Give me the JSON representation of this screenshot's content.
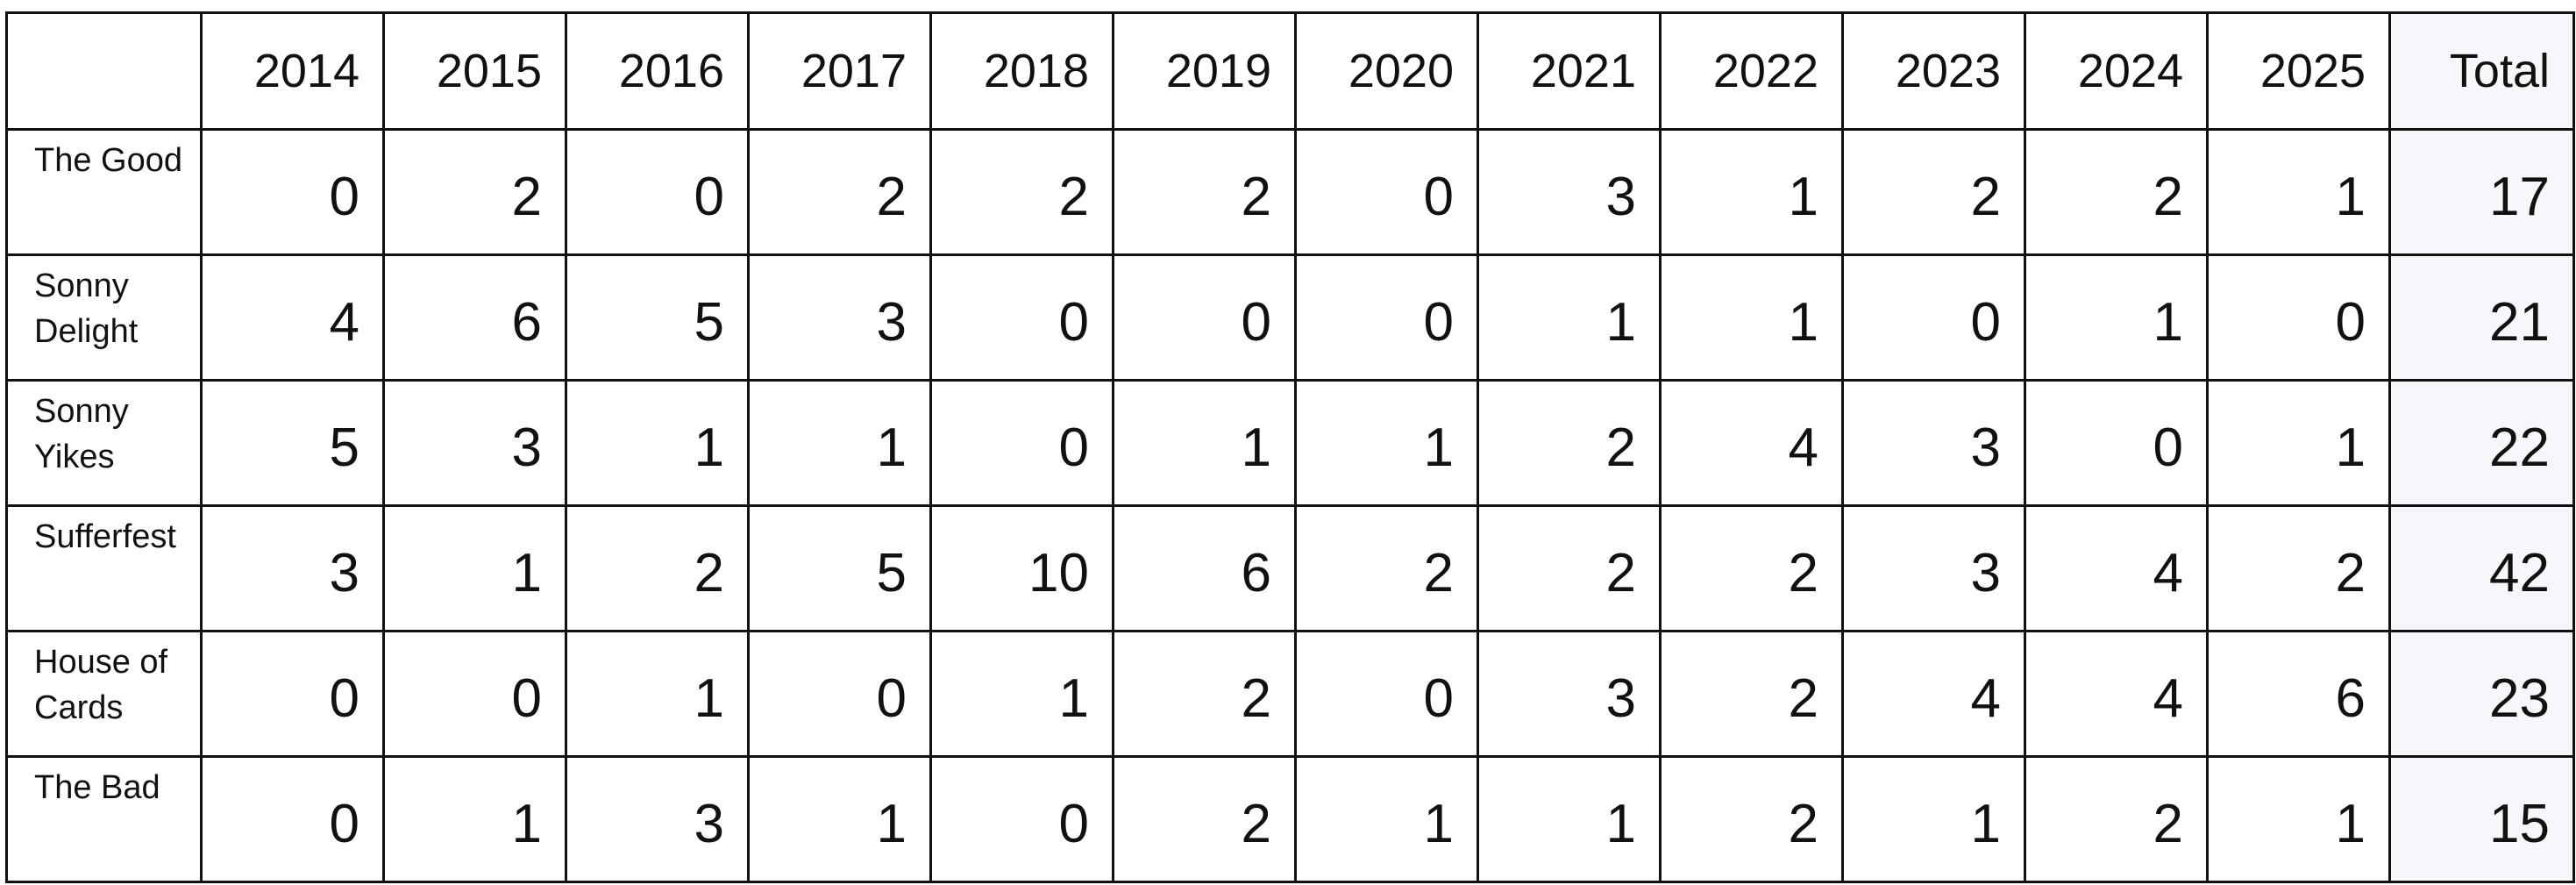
{
  "table": {
    "columns": [
      "2014",
      "2015",
      "2016",
      "2017",
      "2018",
      "2019",
      "2020",
      "2021",
      "2022",
      "2023",
      "2024",
      "2025",
      "Total"
    ],
    "rows": [
      {
        "label": "The Good",
        "cells": [
          0,
          2,
          0,
          2,
          2,
          2,
          0,
          3,
          1,
          2,
          2,
          1,
          17
        ]
      },
      {
        "label": "Sonny Delight",
        "cells": [
          4,
          6,
          5,
          3,
          0,
          0,
          0,
          1,
          1,
          0,
          1,
          0,
          21
        ]
      },
      {
        "label": "Sonny Yikes",
        "cells": [
          5,
          3,
          1,
          1,
          0,
          1,
          1,
          2,
          4,
          3,
          0,
          1,
          22
        ]
      },
      {
        "label": "Sufferfest",
        "cells": [
          3,
          1,
          2,
          5,
          10,
          6,
          2,
          2,
          2,
          3,
          4,
          2,
          42
        ]
      },
      {
        "label": "House of Cards",
        "cells": [
          0,
          0,
          1,
          0,
          1,
          2,
          0,
          3,
          2,
          4,
          4,
          6,
          23
        ]
      },
      {
        "label": "The Bad",
        "cells": [
          0,
          1,
          3,
          1,
          0,
          2,
          1,
          1,
          2,
          1,
          2,
          1,
          15
        ]
      }
    ]
  }
}
